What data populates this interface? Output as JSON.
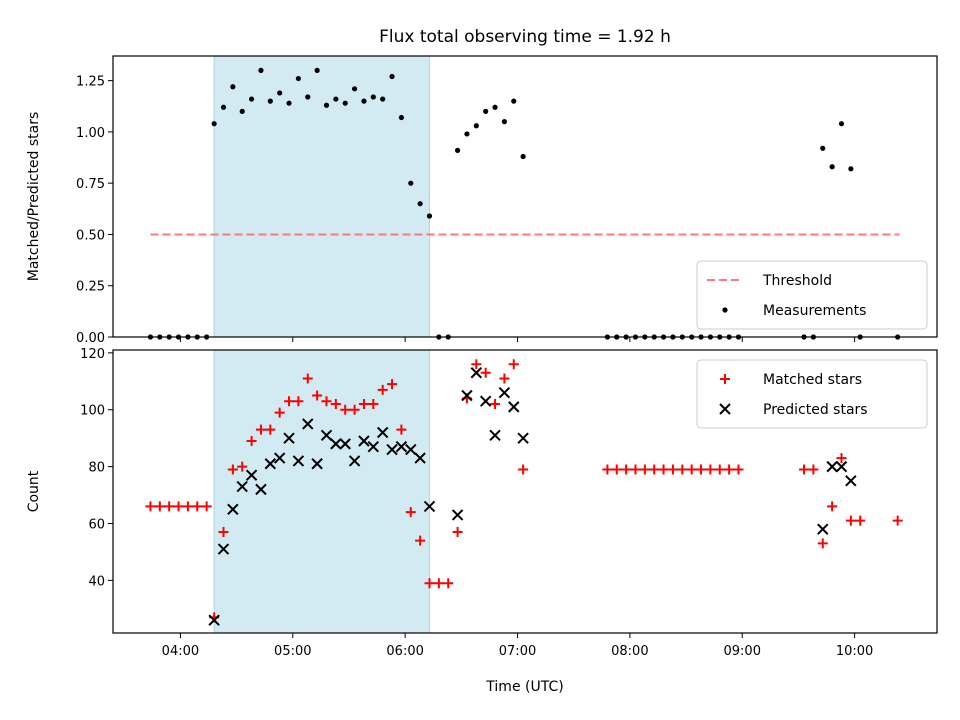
{
  "chart_data": [
    {
      "type": "scatter",
      "title": "Flux total observing time = 1.92 h",
      "xlabel": "",
      "ylabel": "Matched/Predicted stars",
      "ylim": [
        0,
        1.37
      ],
      "xlim": [
        "03:24",
        "10:44"
      ],
      "yticks": [
        "0.00",
        "0.25",
        "0.50",
        "0.75",
        "1.00",
        "1.25"
      ],
      "ytick_values": [
        0,
        0.25,
        0.5,
        0.75,
        1.0,
        1.25
      ],
      "highlight_span": [
        "04:18",
        "06:13"
      ],
      "highlight_color": "#add8e6",
      "threshold": {
        "name": "Threshold",
        "y": 0.5,
        "x_range": [
          "03:44",
          "10:24"
        ],
        "color": "#ff7777",
        "style": "dashed"
      },
      "legend": {
        "position": "lower right",
        "entries": [
          "Threshold",
          "Measurements"
        ]
      },
      "series": [
        {
          "name": "Measurements",
          "marker": "dot",
          "color": "#000000",
          "points": [
            [
              "03:44",
              0
            ],
            [
              "03:49",
              0
            ],
            [
              "03:54",
              0
            ],
            [
              "03:59",
              0
            ],
            [
              "04:04",
              0
            ],
            [
              "04:09",
              0
            ],
            [
              "04:14",
              0
            ],
            [
              "04:18",
              1.04
            ],
            [
              "04:23",
              1.12
            ],
            [
              "04:28",
              1.22
            ],
            [
              "04:33",
              1.1
            ],
            [
              "04:38",
              1.16
            ],
            [
              "04:43",
              1.3
            ],
            [
              "04:48",
              1.15
            ],
            [
              "04:53",
              1.19
            ],
            [
              "04:58",
              1.14
            ],
            [
              "05:03",
              1.26
            ],
            [
              "05:08",
              1.17
            ],
            [
              "05:13",
              1.3
            ],
            [
              "05:18",
              1.13
            ],
            [
              "05:23",
              1.16
            ],
            [
              "05:28",
              1.14
            ],
            [
              "05:33",
              1.21
            ],
            [
              "05:38",
              1.15
            ],
            [
              "05:43",
              1.17
            ],
            [
              "05:48",
              1.16
            ],
            [
              "05:53",
              1.27
            ],
            [
              "05:58",
              1.07
            ],
            [
              "06:03",
              0.75
            ],
            [
              "06:08",
              0.65
            ],
            [
              "06:13",
              0.59
            ],
            [
              "06:18",
              0
            ],
            [
              "06:23",
              0
            ],
            [
              "06:28",
              0.91
            ],
            [
              "06:33",
              0.99
            ],
            [
              "06:38",
              1.03
            ],
            [
              "06:43",
              1.1
            ],
            [
              "06:48",
              1.12
            ],
            [
              "06:53",
              1.05
            ],
            [
              "06:58",
              1.15
            ],
            [
              "07:03",
              0.88
            ],
            [
              "07:48",
              0
            ],
            [
              "07:53",
              0
            ],
            [
              "07:58",
              0
            ],
            [
              "08:03",
              0
            ],
            [
              "08:08",
              0
            ],
            [
              "08:13",
              0
            ],
            [
              "08:18",
              0
            ],
            [
              "08:23",
              0
            ],
            [
              "08:28",
              0
            ],
            [
              "08:33",
              0
            ],
            [
              "08:38",
              0
            ],
            [
              "08:43",
              0
            ],
            [
              "08:48",
              0
            ],
            [
              "08:53",
              0
            ],
            [
              "08:58",
              0
            ],
            [
              "09:33",
              0
            ],
            [
              "09:38",
              0
            ],
            [
              "09:43",
              0.92
            ],
            [
              "09:48",
              0.83
            ],
            [
              "09:53",
              1.04
            ],
            [
              "09:58",
              0.82
            ],
            [
              "10:03",
              0
            ],
            [
              "10:23",
              0
            ]
          ]
        }
      ]
    },
    {
      "type": "scatter",
      "title": "",
      "xlabel": "Time (UTC)",
      "ylabel": "Count",
      "ylim": [
        21.5,
        121
      ],
      "xlim": [
        "03:24",
        "10:44"
      ],
      "xticks": [
        "04:00",
        "05:00",
        "06:00",
        "07:00",
        "08:00",
        "09:00",
        "10:00"
      ],
      "yticks": [
        "40",
        "60",
        "80",
        "100",
        "120"
      ],
      "ytick_values": [
        40,
        60,
        80,
        100,
        120
      ],
      "highlight_span": [
        "04:18",
        "06:13"
      ],
      "highlight_color": "#add8e6",
      "legend": {
        "position": "upper right",
        "entries": [
          "Matched stars",
          "Predicted stars"
        ]
      },
      "series": [
        {
          "name": "Matched stars",
          "marker": "plus",
          "color": "#ff0000",
          "points": [
            [
              "03:44",
              66
            ],
            [
              "03:49",
              66
            ],
            [
              "03:54",
              66
            ],
            [
              "03:59",
              66
            ],
            [
              "04:04",
              66
            ],
            [
              "04:09",
              66
            ],
            [
              "04:14",
              66
            ],
            [
              "04:18",
              27
            ],
            [
              "04:23",
              57
            ],
            [
              "04:28",
              79
            ],
            [
              "04:33",
              80
            ],
            [
              "04:38",
              89
            ],
            [
              "04:43",
              93
            ],
            [
              "04:48",
              93
            ],
            [
              "04:53",
              99
            ],
            [
              "04:58",
              103
            ],
            [
              "05:03",
              103
            ],
            [
              "05:08",
              111
            ],
            [
              "05:13",
              105
            ],
            [
              "05:18",
              103
            ],
            [
              "05:23",
              102
            ],
            [
              "05:28",
              100
            ],
            [
              "05:33",
              100
            ],
            [
              "05:38",
              102
            ],
            [
              "05:43",
              102
            ],
            [
              "05:48",
              107
            ],
            [
              "05:53",
              109
            ],
            [
              "05:58",
              93
            ],
            [
              "06:03",
              64
            ],
            [
              "06:08",
              54
            ],
            [
              "06:13",
              39
            ],
            [
              "06:18",
              39
            ],
            [
              "06:23",
              39
            ],
            [
              "06:28",
              57
            ],
            [
              "06:33",
              104
            ],
            [
              "06:38",
              116
            ],
            [
              "06:43",
              113
            ],
            [
              "06:48",
              102
            ],
            [
              "06:53",
              111
            ],
            [
              "06:58",
              116
            ],
            [
              "07:03",
              79
            ],
            [
              "07:48",
              79
            ],
            [
              "07:53",
              79
            ],
            [
              "07:58",
              79
            ],
            [
              "08:03",
              79
            ],
            [
              "08:08",
              79
            ],
            [
              "08:13",
              79
            ],
            [
              "08:18",
              79
            ],
            [
              "08:23",
              79
            ],
            [
              "08:28",
              79
            ],
            [
              "08:33",
              79
            ],
            [
              "08:38",
              79
            ],
            [
              "08:43",
              79
            ],
            [
              "08:48",
              79
            ],
            [
              "08:53",
              79
            ],
            [
              "08:58",
              79
            ],
            [
              "09:33",
              79
            ],
            [
              "09:38",
              79
            ],
            [
              "09:43",
              53
            ],
            [
              "09:48",
              66
            ],
            [
              "09:53",
              83
            ],
            [
              "09:58",
              61
            ],
            [
              "10:03",
              61
            ],
            [
              "10:23",
              61
            ]
          ]
        },
        {
          "name": "Predicted stars",
          "marker": "x",
          "color": "#000000",
          "points": [
            [
              "04:18",
              26
            ],
            [
              "04:23",
              51
            ],
            [
              "04:28",
              65
            ],
            [
              "04:33",
              73
            ],
            [
              "04:38",
              77
            ],
            [
              "04:43",
              72
            ],
            [
              "04:48",
              81
            ],
            [
              "04:53",
              83
            ],
            [
              "04:58",
              90
            ],
            [
              "05:03",
              82
            ],
            [
              "05:08",
              95
            ],
            [
              "05:13",
              81
            ],
            [
              "05:18",
              91
            ],
            [
              "05:23",
              88
            ],
            [
              "05:28",
              88
            ],
            [
              "05:33",
              82
            ],
            [
              "05:38",
              89
            ],
            [
              "05:43",
              87
            ],
            [
              "05:48",
              92
            ],
            [
              "05:53",
              86
            ],
            [
              "05:58",
              87
            ],
            [
              "06:03",
              86
            ],
            [
              "06:08",
              83
            ],
            [
              "06:13",
              66
            ],
            [
              "06:28",
              63
            ],
            [
              "06:33",
              105
            ],
            [
              "06:38",
              113
            ],
            [
              "06:43",
              103
            ],
            [
              "06:48",
              91
            ],
            [
              "06:53",
              106
            ],
            [
              "06:58",
              101
            ],
            [
              "07:03",
              90
            ],
            [
              "09:43",
              58
            ],
            [
              "09:48",
              80
            ],
            [
              "09:53",
              80
            ],
            [
              "09:58",
              75
            ]
          ]
        }
      ]
    }
  ]
}
